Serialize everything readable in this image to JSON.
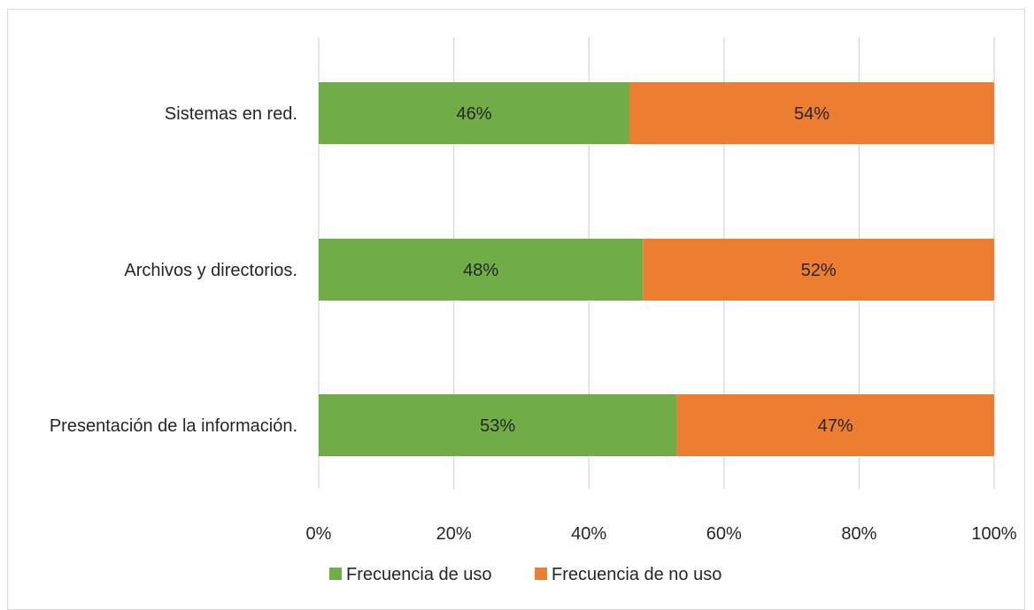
{
  "chart_data": {
    "type": "bar",
    "orientation": "horizontal",
    "stacked": true,
    "categories": [
      "Sistemas en red.",
      "Archivos y directorios.",
      "Presentación de la información."
    ],
    "series": [
      {
        "name": "Frecuencia de uso",
        "color": "#70ad47",
        "values": [
          46,
          48,
          53
        ],
        "labels": [
          "46%",
          "48%",
          "53%"
        ]
      },
      {
        "name": "Frecuencia de no uso",
        "color": "#ed7d31",
        "values": [
          54,
          52,
          47
        ],
        "labels": [
          "54%",
          "52%",
          "47%"
        ]
      }
    ],
    "xlim": [
      0,
      100
    ],
    "x_ticks": [
      0,
      20,
      40,
      60,
      80,
      100
    ],
    "x_tick_labels": [
      "0%",
      "20%",
      "40%",
      "60%",
      "80%",
      "100%"
    ],
    "grid": true,
    "legend_position": "bottom",
    "title": "",
    "xlabel": "",
    "ylabel": ""
  }
}
